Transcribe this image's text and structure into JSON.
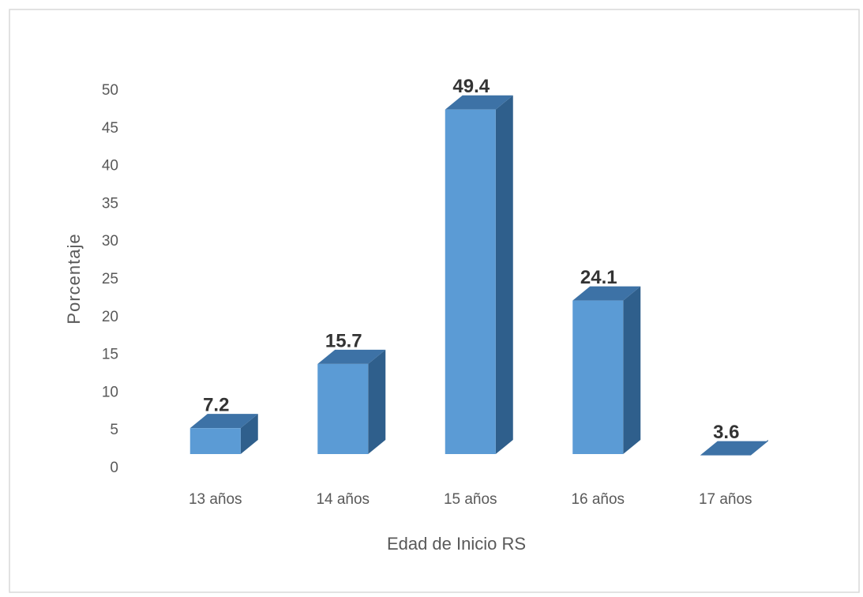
{
  "chart_data": {
    "type": "bar3d",
    "categories": [
      "13 años",
      "14 años",
      "15 años",
      "16 años",
      "17 años"
    ],
    "values": [
      7.2,
      15.7,
      49.4,
      24.1,
      3.6
    ],
    "color": "#5b9bd5",
    "x_label": "Edad de Inicio RS",
    "y_label": "Porcentaje",
    "ylim": [
      0,
      50
    ],
    "yticks": [
      0,
      5,
      10,
      15,
      20,
      25,
      30,
      35,
      40,
      45,
      50
    ],
    "grid": false
  }
}
